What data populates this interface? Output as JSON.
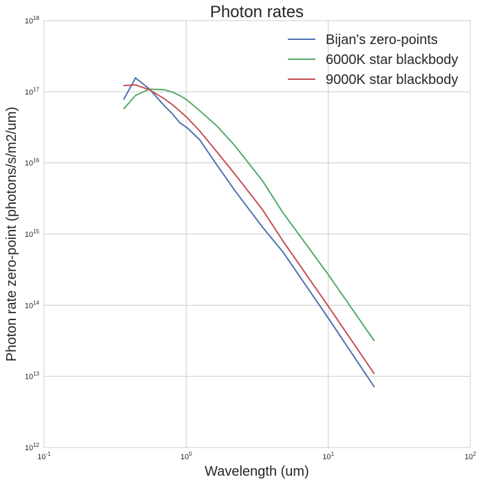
{
  "chart_data": {
    "type": "line",
    "title": "Photon rates",
    "xlabel": "Wavelength (um)",
    "ylabel": "Photon rate zero-point (photons/s/m2/um)",
    "xscale": "log",
    "yscale": "log",
    "xlim": [
      0.1,
      100
    ],
    "ylim": [
      1000000000000.0,
      1e+18
    ],
    "grid": true,
    "legend_position": "top-right",
    "x_ticks": [
      {
        "base": "10",
        "exp": "-1",
        "value": 0.1
      },
      {
        "base": "10",
        "exp": "0",
        "value": 1
      },
      {
        "base": "10",
        "exp": "1",
        "value": 10
      },
      {
        "base": "10",
        "exp": "2",
        "value": 100
      }
    ],
    "y_ticks": [
      {
        "base": "10",
        "exp": "12",
        "value": 1000000000000.0
      },
      {
        "base": "10",
        "exp": "13",
        "value": 10000000000000.0
      },
      {
        "base": "10",
        "exp": "14",
        "value": 100000000000000.0
      },
      {
        "base": "10",
        "exp": "15",
        "value": 1000000000000000.0
      },
      {
        "base": "10",
        "exp": "16",
        "value": 1e+16
      },
      {
        "base": "10",
        "exp": "17",
        "value": 1e+17
      },
      {
        "base": "10",
        "exp": "18",
        "value": 1e+18
      }
    ],
    "series": [
      {
        "name": "Bijan's zero-points",
        "color": "#4c72b0",
        "x": [
          0.365,
          0.44,
          0.55,
          0.7,
          0.8,
          0.9,
          1.02,
          1.25,
          1.65,
          2.2,
          3.45,
          4.8,
          10.0,
          21.0
        ],
        "y": [
          7.9e+16,
          1.57e+17,
          1.1e+17,
          6.4e+16,
          4.9e+16,
          3.7e+16,
          3.1e+16,
          2.1e+16,
          9300000000000000.0,
          4100000000000000.0,
          1250000000000000.0,
          560000000000000.0,
          66000000000000.0,
          7200000000000.0
        ]
      },
      {
        "name": "6000K star blackbody",
        "color": "#55a868",
        "x": [
          0.365,
          0.44,
          0.55,
          0.7,
          0.8,
          0.9,
          1.02,
          1.25,
          1.65,
          2.2,
          3.45,
          4.8,
          10.0,
          21.0
        ],
        "y": [
          5.8e+16,
          8.9e+16,
          1.09e+17,
          1.07e+17,
          9.9e+16,
          8.9e+16,
          7.6e+16,
          5.4e+16,
          3.3e+16,
          1.75e+16,
          5600000000000000.0,
          2000000000000000.0,
          270000000000000.0,
          32000000000000.0
        ]
      },
      {
        "name": "9000K star blackbody",
        "color": "#c44e52",
        "x": [
          0.365,
          0.44,
          0.55,
          0.7,
          0.8,
          0.9,
          1.02,
          1.25,
          1.65,
          2.2,
          3.45,
          4.8,
          10.0,
          21.0
        ],
        "y": [
          1.22e+17,
          1.25e+17,
          1.07e+17,
          8e+16,
          6.6e+16,
          5.4e+16,
          4.3e+16,
          2.8e+16,
          1.42e+16,
          7000000000000000.0,
          2200000000000000.0,
          800000000000000.0,
          97000000000000.0,
          11000000000000.0
        ]
      }
    ]
  }
}
